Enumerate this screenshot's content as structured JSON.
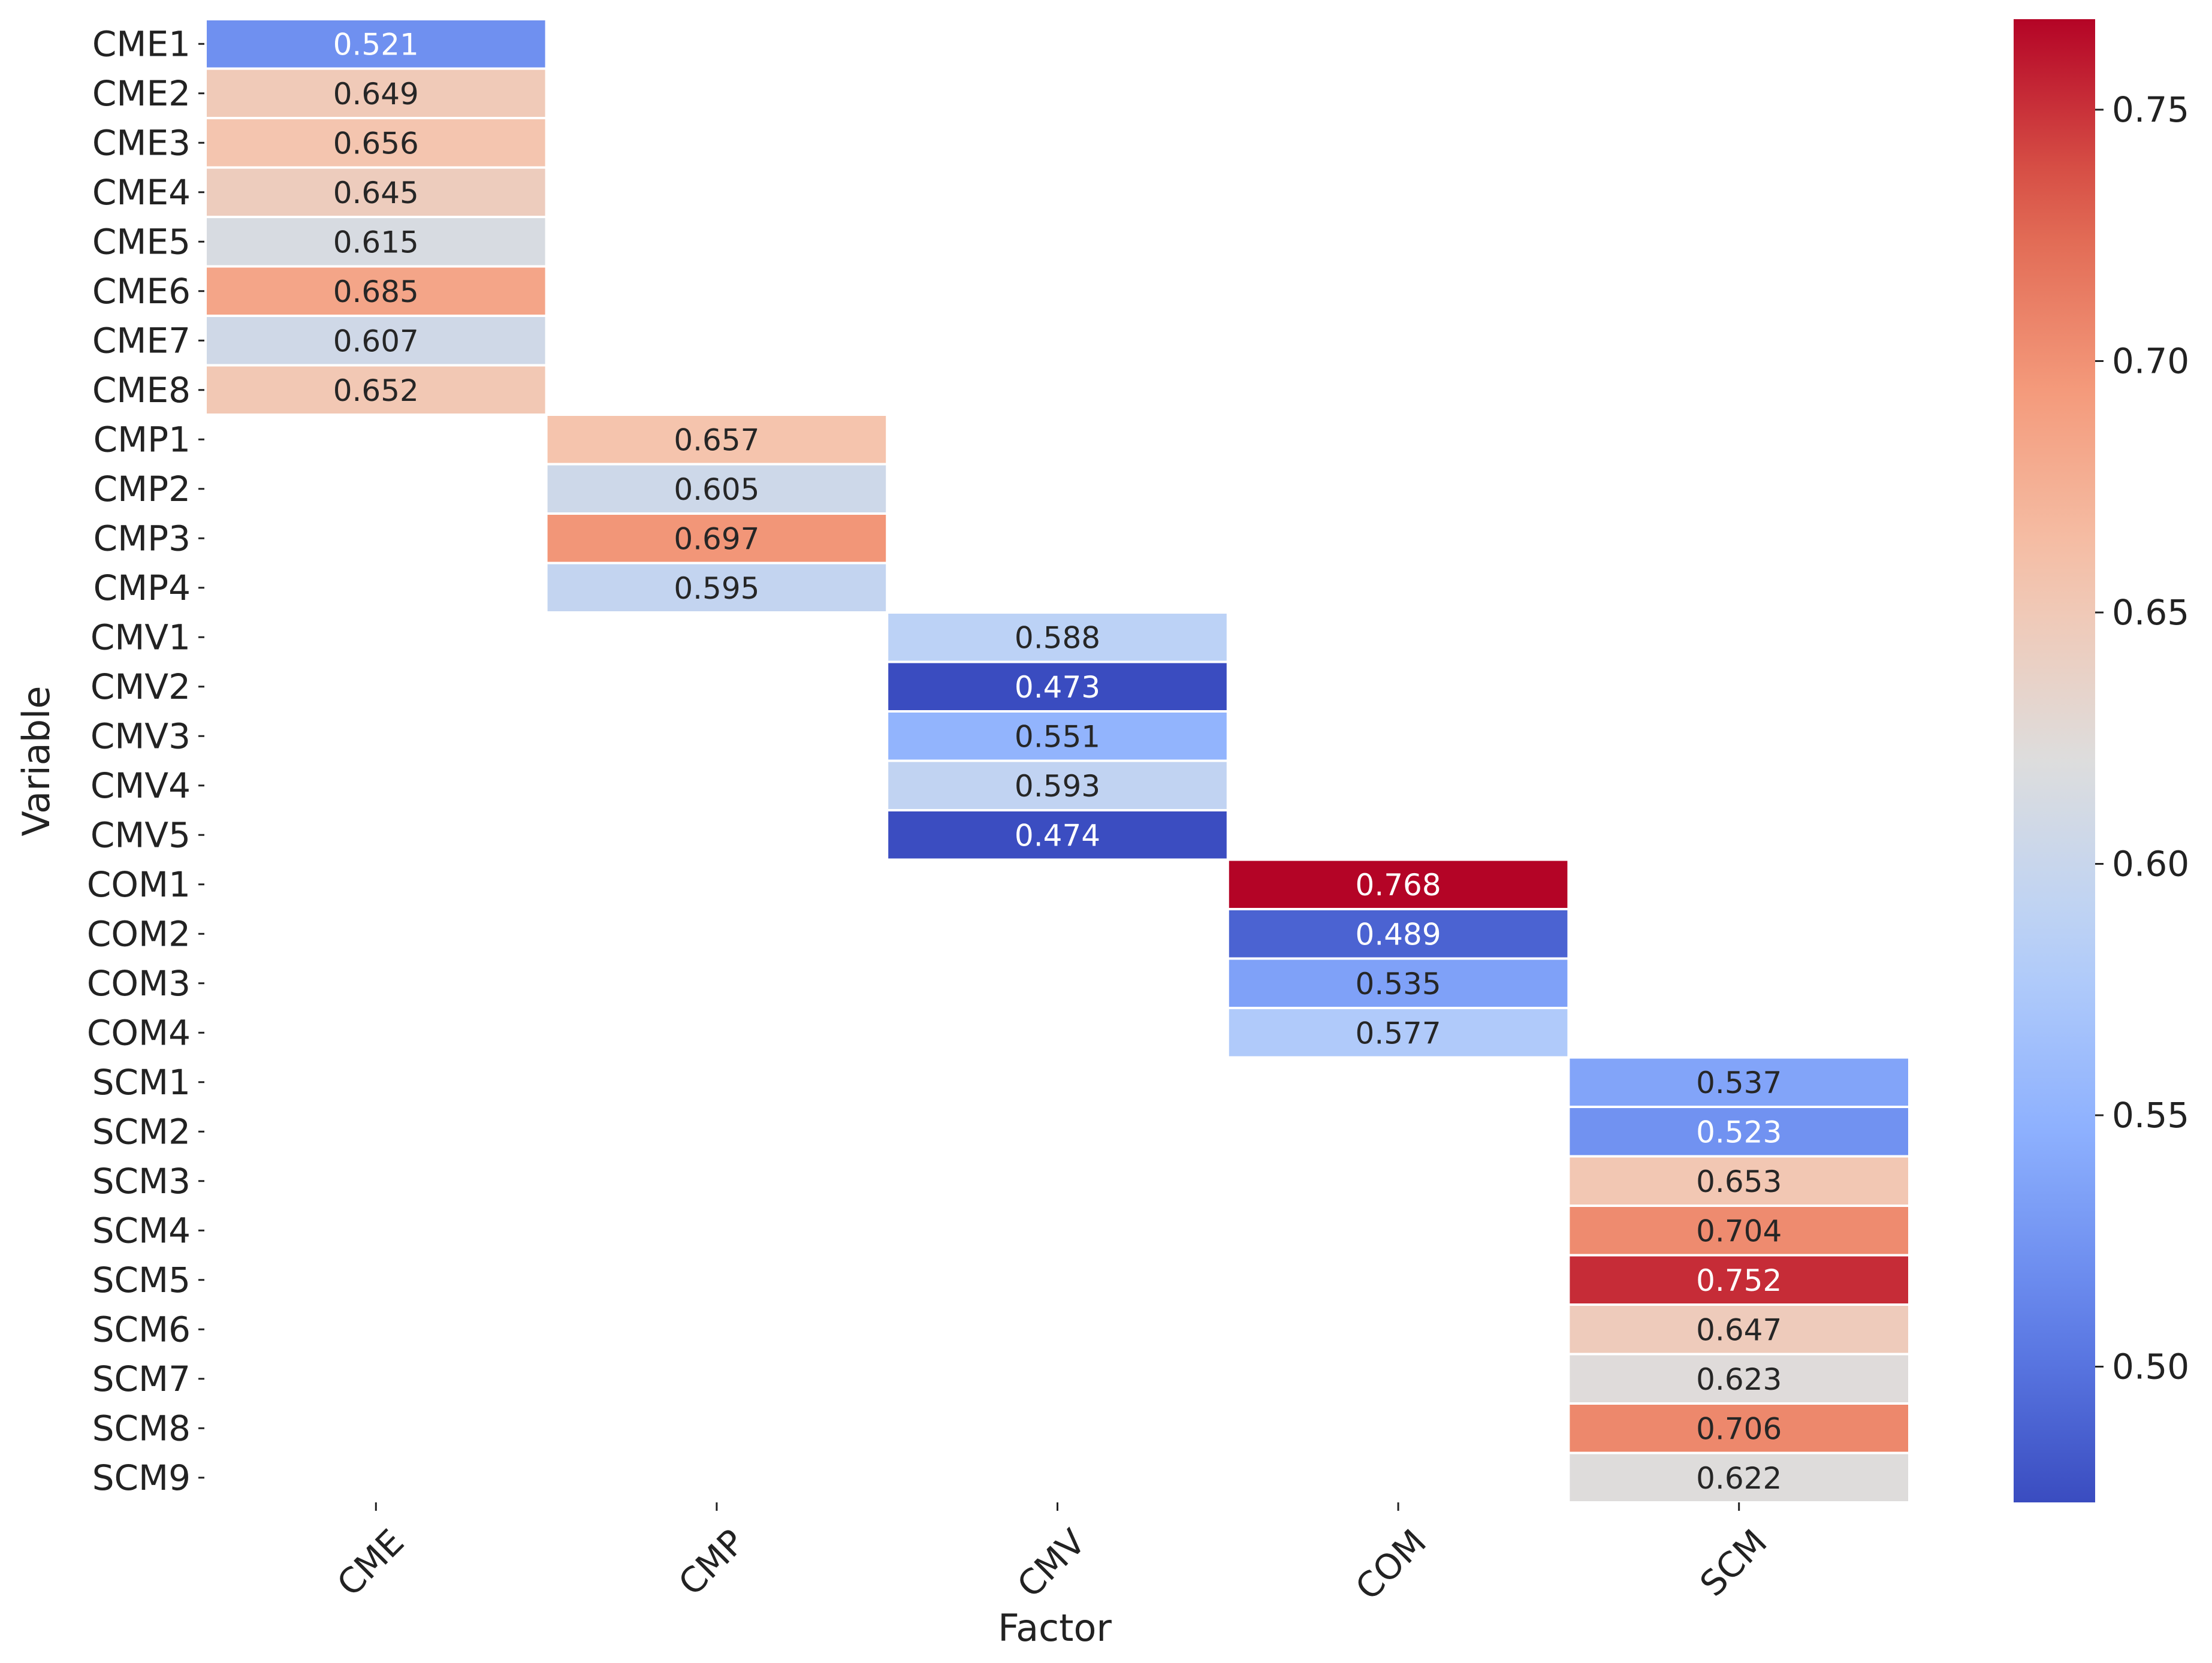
{
  "chart_data": {
    "type": "heatmap",
    "title": "",
    "xlabel": "Factor",
    "ylabel": "Variable",
    "factors": [
      "CME",
      "CMP",
      "CMV",
      "COM",
      "SCM"
    ],
    "variables": [
      "CME1",
      "CME2",
      "CME3",
      "CME4",
      "CME5",
      "CME6",
      "CME7",
      "CME8",
      "CMP1",
      "CMP2",
      "CMP3",
      "CMP4",
      "CMV1",
      "CMV2",
      "CMV3",
      "CMV4",
      "CMV5",
      "COM1",
      "COM2",
      "COM3",
      "COM4",
      "SCM1",
      "SCM2",
      "SCM3",
      "SCM4",
      "SCM5",
      "SCM6",
      "SCM7",
      "SCM8",
      "SCM9"
    ],
    "cells": [
      {
        "variable": "CME1",
        "factor": "CME",
        "value": 0.521,
        "label": "0.521"
      },
      {
        "variable": "CME2",
        "factor": "CME",
        "value": 0.649,
        "label": "0.649"
      },
      {
        "variable": "CME3",
        "factor": "CME",
        "value": 0.656,
        "label": "0.656"
      },
      {
        "variable": "CME4",
        "factor": "CME",
        "value": 0.645,
        "label": "0.645"
      },
      {
        "variable": "CME5",
        "factor": "CME",
        "value": 0.615,
        "label": "0.615"
      },
      {
        "variable": "CME6",
        "factor": "CME",
        "value": 0.685,
        "label": "0.685"
      },
      {
        "variable": "CME7",
        "factor": "CME",
        "value": 0.607,
        "label": "0.607"
      },
      {
        "variable": "CME8",
        "factor": "CME",
        "value": 0.652,
        "label": "0.652"
      },
      {
        "variable": "CMP1",
        "factor": "CMP",
        "value": 0.657,
        "label": "0.657"
      },
      {
        "variable": "CMP2",
        "factor": "CMP",
        "value": 0.605,
        "label": "0.605"
      },
      {
        "variable": "CMP3",
        "factor": "CMP",
        "value": 0.697,
        "label": "0.697"
      },
      {
        "variable": "CMP4",
        "factor": "CMP",
        "value": 0.595,
        "label": "0.595"
      },
      {
        "variable": "CMV1",
        "factor": "CMV",
        "value": 0.588,
        "label": "0.588"
      },
      {
        "variable": "CMV2",
        "factor": "CMV",
        "value": 0.473,
        "label": "0.473"
      },
      {
        "variable": "CMV3",
        "factor": "CMV",
        "value": 0.551,
        "label": "0.551"
      },
      {
        "variable": "CMV4",
        "factor": "CMV",
        "value": 0.593,
        "label": "0.593"
      },
      {
        "variable": "CMV5",
        "factor": "CMV",
        "value": 0.474,
        "label": "0.474"
      },
      {
        "variable": "COM1",
        "factor": "COM",
        "value": 0.768,
        "label": "0.768"
      },
      {
        "variable": "COM2",
        "factor": "COM",
        "value": 0.489,
        "label": "0.489"
      },
      {
        "variable": "COM3",
        "factor": "COM",
        "value": 0.535,
        "label": "0.535"
      },
      {
        "variable": "COM4",
        "factor": "COM",
        "value": 0.577,
        "label": "0.577"
      },
      {
        "variable": "SCM1",
        "factor": "SCM",
        "value": 0.537,
        "label": "0.537"
      },
      {
        "variable": "SCM2",
        "factor": "SCM",
        "value": 0.523,
        "label": "0.523"
      },
      {
        "variable": "SCM3",
        "factor": "SCM",
        "value": 0.653,
        "label": "0.653"
      },
      {
        "variable": "SCM4",
        "factor": "SCM",
        "value": 0.704,
        "label": "0.704"
      },
      {
        "variable": "SCM5",
        "factor": "SCM",
        "value": 0.752,
        "label": "0.752"
      },
      {
        "variable": "SCM6",
        "factor": "SCM",
        "value": 0.647,
        "label": "0.647"
      },
      {
        "variable": "SCM7",
        "factor": "SCM",
        "value": 0.623,
        "label": "0.623"
      },
      {
        "variable": "SCM8",
        "factor": "SCM",
        "value": 0.706,
        "label": "0.706"
      },
      {
        "variable": "SCM9",
        "factor": "SCM",
        "value": 0.622,
        "label": "0.622"
      }
    ],
    "colorbar": {
      "range": [
        0.473,
        0.768
      ],
      "ticks": [
        0.5,
        0.55,
        0.6,
        0.65,
        0.7,
        0.75
      ],
      "tick_labels": [
        "0.50",
        "0.55",
        "0.60",
        "0.65",
        "0.70",
        "0.75"
      ]
    },
    "colormap": "coolwarm",
    "grid": false
  }
}
